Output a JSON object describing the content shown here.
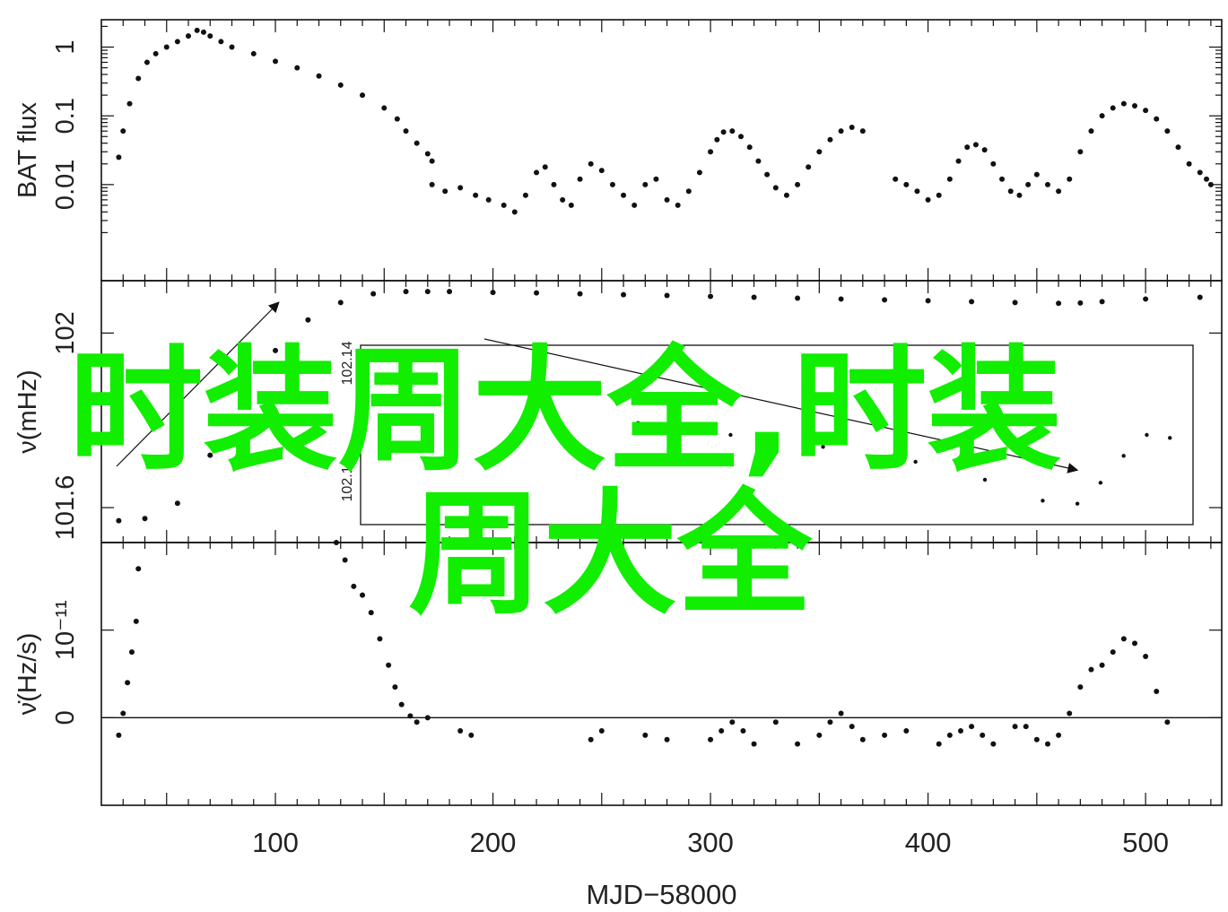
{
  "figure": {
    "xlabel": "MJD−58000",
    "watermark_line1": "时装周大全,时装",
    "watermark_line2": "周大全",
    "watermark_color": "#11ee00"
  },
  "chart_data": [
    {
      "type": "scatter",
      "panel": "top",
      "ylabel": "BAT flux",
      "yscale": "log",
      "xlim": [
        20,
        535
      ],
      "ylim": [
        0.0004,
        2.5
      ],
      "x_ticks": [
        "100",
        "200",
        "300",
        "400",
        "500"
      ],
      "y_ticks": [
        "0.01",
        "0.1",
        "1"
      ],
      "y_tick_values": [
        0.01,
        0.1,
        1
      ],
      "segments": [
        {
          "x": [
            28,
            30,
            33,
            37,
            41,
            45,
            50,
            55,
            60,
            64,
            67,
            70,
            75,
            80,
            90,
            100,
            110,
            120,
            130,
            140,
            150,
            156,
            160,
            165,
            170,
            172
          ],
          "y": [
            0.025,
            0.06,
            0.15,
            0.35,
            0.6,
            0.8,
            1.0,
            1.2,
            1.45,
            1.75,
            1.65,
            1.45,
            1.2,
            1.0,
            0.8,
            0.62,
            0.5,
            0.38,
            0.28,
            0.2,
            0.13,
            0.09,
            0.06,
            0.04,
            0.028,
            0.022
          ]
        },
        {
          "x": [
            172,
            178,
            185,
            192,
            198,
            205,
            210,
            215,
            220,
            224,
            228,
            232,
            236,
            240,
            245,
            250,
            255,
            260,
            265,
            270,
            275,
            280,
            285,
            290,
            295,
            300,
            303,
            306,
            310,
            314,
            318,
            322,
            326,
            330,
            335,
            340,
            345,
            350,
            355,
            360,
            365,
            370
          ],
          "y": [
            0.01,
            0.008,
            0.009,
            0.007,
            0.006,
            0.005,
            0.004,
            0.007,
            0.015,
            0.018,
            0.01,
            0.006,
            0.005,
            0.012,
            0.02,
            0.016,
            0.01,
            0.007,
            0.005,
            0.01,
            0.012,
            0.006,
            0.005,
            0.008,
            0.015,
            0.03,
            0.045,
            0.058,
            0.06,
            0.05,
            0.035,
            0.022,
            0.014,
            0.009,
            0.007,
            0.01,
            0.018,
            0.03,
            0.045,
            0.06,
            0.068,
            0.06
          ]
        },
        {
          "x": [
            385,
            390,
            395,
            400,
            405,
            410,
            414,
            418,
            422,
            426,
            430,
            434,
            438,
            442,
            446,
            450,
            455,
            460,
            465,
            470,
            475,
            480,
            485,
            490,
            495,
            500,
            505,
            510,
            515,
            520,
            525,
            528,
            530
          ],
          "y": [
            0.012,
            0.01,
            0.008,
            0.006,
            0.007,
            0.012,
            0.022,
            0.035,
            0.038,
            0.032,
            0.02,
            0.012,
            0.008,
            0.007,
            0.01,
            0.014,
            0.01,
            0.008,
            0.012,
            0.03,
            0.06,
            0.1,
            0.13,
            0.15,
            0.14,
            0.12,
            0.09,
            0.06,
            0.035,
            0.02,
            0.015,
            0.012,
            0.01
          ]
        }
      ]
    },
    {
      "type": "scatter",
      "panel": "middle",
      "ylabel": "ν(mHz)",
      "xlim": [
        20,
        535
      ],
      "ylim": [
        101.52,
        102.12
      ],
      "y_ticks": [
        "101.6",
        "102"
      ],
      "y_tick_values": [
        101.6,
        102
      ],
      "x": [
        28,
        40,
        55,
        70,
        85,
        100,
        115,
        130,
        145,
        160,
        170,
        180,
        200,
        220,
        240,
        260,
        280,
        300,
        320,
        340,
        360,
        380,
        400,
        420,
        440,
        460,
        470,
        480,
        500,
        525
      ],
      "y": [
        101.57,
        101.575,
        101.61,
        101.72,
        101.85,
        101.96,
        102.03,
        102.07,
        102.09,
        102.095,
        102.095,
        102.095,
        102.093,
        102.092,
        102.09,
        102.088,
        102.086,
        102.084,
        102.082,
        102.08,
        102.078,
        102.076,
        102.074,
        102.072,
        102.07,
        102.068,
        102.069,
        102.072,
        102.078,
        102.082
      ],
      "inset": {
        "y_ticks": [
          "102.14",
          "102.12"
        ],
        "x": [
          165,
          200,
          240,
          280,
          320,
          360,
          400,
          430,
          455,
          470,
          480,
          490,
          500,
          510
        ],
        "y": [
          102.118,
          102.113,
          102.104,
          102.096,
          102.092,
          102.088,
          102.083,
          102.077,
          102.07,
          102.069,
          102.076,
          102.085,
          102.092,
          102.091
        ]
      }
    },
    {
      "type": "scatter",
      "panel": "bottom",
      "ylabel": "ν̇(Hz/s)",
      "xlim": [
        20,
        535
      ],
      "ylim": [
        -1.0,
        2.0
      ],
      "y_ticks": [
        "0",
        "10⁻¹¹"
      ],
      "y_tick_values": [
        0,
        1
      ],
      "zero_line": true,
      "x": [
        28,
        30,
        32,
        34,
        36,
        37,
        128,
        132,
        136,
        140,
        144,
        148,
        152,
        155,
        158,
        162,
        165,
        170,
        185,
        190,
        245,
        250,
        270,
        280,
        300,
        305,
        310,
        315,
        320,
        330,
        340,
        350,
        355,
        360,
        365,
        370,
        380,
        390,
        405,
        410,
        415,
        420,
        425,
        430,
        440,
        445,
        450,
        455,
        460,
        465,
        470,
        475,
        480,
        485,
        490,
        495,
        500,
        505,
        510
      ],
      "y": [
        -0.2,
        0.05,
        0.4,
        0.75,
        1.1,
        1.7,
        2.0,
        1.8,
        1.5,
        1.4,
        1.2,
        0.9,
        0.6,
        0.35,
        0.15,
        0.02,
        -0.05,
        0.0,
        -0.15,
        -0.2,
        -0.25,
        -0.15,
        -0.2,
        -0.25,
        -0.25,
        -0.15,
        -0.05,
        -0.15,
        -0.3,
        -0.05,
        -0.3,
        -0.2,
        -0.05,
        0.05,
        -0.1,
        -0.25,
        -0.2,
        -0.15,
        -0.3,
        -0.2,
        -0.15,
        -0.1,
        -0.2,
        -0.3,
        -0.1,
        -0.1,
        -0.25,
        -0.3,
        -0.2,
        0.05,
        0.35,
        0.55,
        0.6,
        0.75,
        0.9,
        0.85,
        0.7,
        0.3,
        -0.05
      ]
    }
  ]
}
